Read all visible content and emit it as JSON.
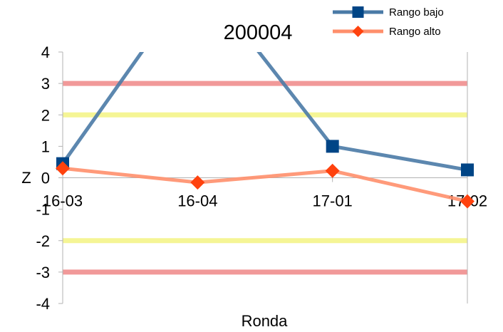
{
  "chart_data": {
    "type": "line",
    "title": "200004",
    "xlabel": "Ronda",
    "ylabel": "Z",
    "categories": [
      "16-03",
      "16-04",
      "17-01",
      "17-02"
    ],
    "ylim": [
      -4,
      4
    ],
    "yticks": [
      "4",
      "3",
      "2",
      "1",
      "0",
      "-1",
      "-2",
      "-3",
      "-4"
    ],
    "legend_position": "top-right",
    "grid": false,
    "series": [
      {
        "name": "Rango bajo",
        "color": "#4a7aa6",
        "marker_color": "#004586",
        "marker": "square",
        "values": [
          0.45,
          6.5,
          1.0,
          0.25
        ]
      },
      {
        "name": "Rango alto",
        "color": "#ff8f6b",
        "marker_color": "#ff420e",
        "marker": "diamond",
        "values": [
          0.3,
          -0.15,
          0.22,
          -0.75
        ]
      }
    ],
    "reference_lines": [
      {
        "y": 3,
        "color": "#ee8080"
      },
      {
        "y": 2,
        "color": "#f2f27a"
      },
      {
        "y": -2,
        "color": "#f2f27a"
      },
      {
        "y": -3,
        "color": "#ee8080"
      }
    ]
  }
}
